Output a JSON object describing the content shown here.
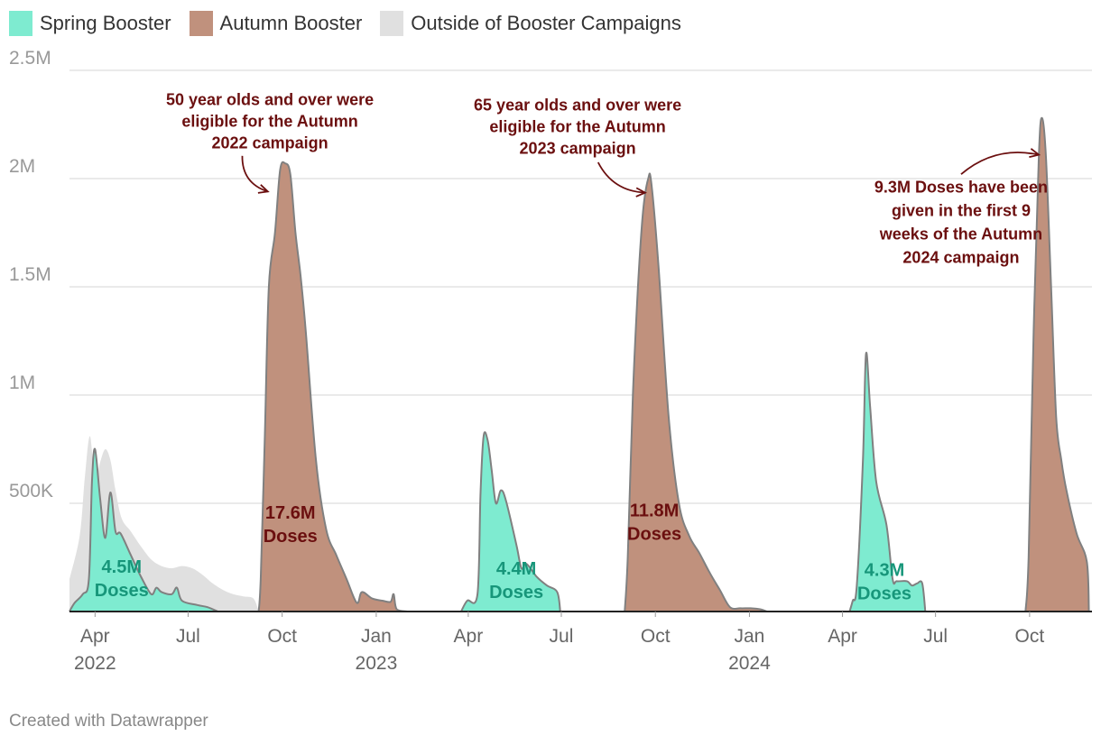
{
  "legend": [
    {
      "label": "Spring Booster",
      "color": "#7eebd0"
    },
    {
      "label": "Autumn Booster",
      "color": "#c0917d"
    },
    {
      "label": "Outside of Booster Campaigns",
      "color": "#e0e0e0"
    }
  ],
  "credit": "Created with Datawrapper",
  "chart_data": {
    "type": "area",
    "title": "",
    "xlabel": "",
    "ylabel": "",
    "ylim": [
      0,
      2500000
    ],
    "xlim": [
      "2022-03-07",
      "2024-12-01"
    ],
    "y_ticks": [
      {
        "value": 500000,
        "label": "500K"
      },
      {
        "value": 1000000,
        "label": "1M"
      },
      {
        "value": 1500000,
        "label": "1.5M"
      },
      {
        "value": 2000000,
        "label": "2M"
      },
      {
        "value": 2500000,
        "label": "2.5M"
      }
    ],
    "x_ticks": [
      {
        "date": "2022-04-01",
        "label": "Apr",
        "sub": "2022"
      },
      {
        "date": "2022-07-01",
        "label": "Jul",
        "sub": ""
      },
      {
        "date": "2022-10-01",
        "label": "Oct",
        "sub": ""
      },
      {
        "date": "2023-01-01",
        "label": "Jan",
        "sub": "2023"
      },
      {
        "date": "2023-04-01",
        "label": "Apr",
        "sub": ""
      },
      {
        "date": "2023-07-01",
        "label": "Jul",
        "sub": ""
      },
      {
        "date": "2023-10-01",
        "label": "Oct",
        "sub": ""
      },
      {
        "date": "2024-01-01",
        "label": "Jan",
        "sub": "2024"
      },
      {
        "date": "2024-04-01",
        "label": "Apr",
        "sub": ""
      },
      {
        "date": "2024-07-01",
        "label": "Jul",
        "sub": ""
      },
      {
        "date": "2024-10-01",
        "label": "Oct",
        "sub": ""
      }
    ],
    "series": [
      {
        "name": "Outside of Booster Campaigns",
        "color": "#e0e0e0",
        "stroke": "none",
        "points": [
          [
            "2022-03-07",
            150000
          ],
          [
            "2022-03-17",
            350000
          ],
          [
            "2022-03-22",
            620000
          ],
          [
            "2022-03-27",
            810000
          ],
          [
            "2022-04-01",
            600000
          ],
          [
            "2022-04-06",
            690000
          ],
          [
            "2022-04-11",
            750000
          ],
          [
            "2022-04-16",
            700000
          ],
          [
            "2022-04-21",
            560000
          ],
          [
            "2022-04-27",
            430000
          ],
          [
            "2022-05-06",
            370000
          ],
          [
            "2022-05-16",
            300000
          ],
          [
            "2022-05-26",
            240000
          ],
          [
            "2022-06-05",
            210000
          ],
          [
            "2022-06-15",
            200000
          ],
          [
            "2022-06-25",
            210000
          ],
          [
            "2022-07-05",
            200000
          ],
          [
            "2022-07-15",
            170000
          ],
          [
            "2022-07-25",
            130000
          ],
          [
            "2022-08-04",
            100000
          ],
          [
            "2022-08-14",
            80000
          ],
          [
            "2022-08-24",
            70000
          ],
          [
            "2022-09-03",
            60000
          ],
          [
            "2022-09-08",
            0
          ]
        ]
      },
      {
        "name": "Spring Booster 2022",
        "color": "#7eebd0",
        "stroke": "#808080",
        "points": [
          [
            "2022-03-07",
            0
          ],
          [
            "2022-03-12",
            40000
          ],
          [
            "2022-03-20",
            80000
          ],
          [
            "2022-03-26",
            150000
          ],
          [
            "2022-03-29",
            600000
          ],
          [
            "2022-04-01",
            750000
          ],
          [
            "2022-04-06",
            520000
          ],
          [
            "2022-04-11",
            340000
          ],
          [
            "2022-04-16",
            550000
          ],
          [
            "2022-04-21",
            370000
          ],
          [
            "2022-04-26",
            360000
          ],
          [
            "2022-05-06",
            260000
          ],
          [
            "2022-05-16",
            160000
          ],
          [
            "2022-05-26",
            80000
          ],
          [
            "2022-05-31",
            110000
          ],
          [
            "2022-06-05",
            90000
          ],
          [
            "2022-06-15",
            80000
          ],
          [
            "2022-06-20",
            110000
          ],
          [
            "2022-06-25",
            50000
          ],
          [
            "2022-07-10",
            30000
          ],
          [
            "2022-07-20",
            20000
          ],
          [
            "2022-07-30",
            0
          ]
        ]
      },
      {
        "name": "Autumn Booster 2022",
        "color": "#c0917d",
        "stroke": "#808080",
        "points": [
          [
            "2022-09-08",
            0
          ],
          [
            "2022-09-10",
            150000
          ],
          [
            "2022-09-14",
            800000
          ],
          [
            "2022-09-18",
            1500000
          ],
          [
            "2022-09-24",
            1750000
          ],
          [
            "2022-09-29",
            2040000
          ],
          [
            "2022-10-04",
            2070000
          ],
          [
            "2022-10-09",
            2020000
          ],
          [
            "2022-10-14",
            1750000
          ],
          [
            "2022-10-19",
            1550000
          ],
          [
            "2022-10-24",
            1300000
          ],
          [
            "2022-11-03",
            700000
          ],
          [
            "2022-11-13",
            380000
          ],
          [
            "2022-11-23",
            260000
          ],
          [
            "2022-12-03",
            150000
          ],
          [
            "2022-12-13",
            40000
          ],
          [
            "2022-12-18",
            90000
          ],
          [
            "2022-12-28",
            60000
          ],
          [
            "2023-01-07",
            50000
          ],
          [
            "2023-01-15",
            45000
          ],
          [
            "2023-01-18",
            80000
          ],
          [
            "2023-01-21",
            10000
          ],
          [
            "2023-01-31",
            0
          ]
        ]
      },
      {
        "name": "Spring Booster 2023",
        "color": "#7eebd0",
        "stroke": "#808080",
        "points": [
          [
            "2023-03-25",
            0
          ],
          [
            "2023-03-31",
            50000
          ],
          [
            "2023-04-10",
            80000
          ],
          [
            "2023-04-13",
            550000
          ],
          [
            "2023-04-16",
            810000
          ],
          [
            "2023-04-20",
            790000
          ],
          [
            "2023-04-24",
            650000
          ],
          [
            "2023-04-28",
            500000
          ],
          [
            "2023-05-03",
            560000
          ],
          [
            "2023-05-08",
            510000
          ],
          [
            "2023-05-18",
            310000
          ],
          [
            "2023-05-23",
            200000
          ],
          [
            "2023-05-28",
            220000
          ],
          [
            "2023-06-07",
            160000
          ],
          [
            "2023-06-17",
            120000
          ],
          [
            "2023-06-27",
            90000
          ],
          [
            "2023-06-30",
            0
          ]
        ]
      },
      {
        "name": "Autumn Booster 2023",
        "color": "#c0917d",
        "stroke": "#808080",
        "points": [
          [
            "2023-09-01",
            0
          ],
          [
            "2023-09-04",
            250000
          ],
          [
            "2023-09-09",
            1000000
          ],
          [
            "2023-09-14",
            1500000
          ],
          [
            "2023-09-19",
            1850000
          ],
          [
            "2023-09-24",
            2000000
          ],
          [
            "2023-09-27",
            1980000
          ],
          [
            "2023-10-04",
            1600000
          ],
          [
            "2023-10-14",
            900000
          ],
          [
            "2023-10-24",
            500000
          ],
          [
            "2023-11-03",
            350000
          ],
          [
            "2023-11-13",
            270000
          ],
          [
            "2023-11-23",
            180000
          ],
          [
            "2023-12-03",
            100000
          ],
          [
            "2023-12-13",
            20000
          ],
          [
            "2023-12-23",
            15000
          ],
          [
            "2024-01-02",
            15000
          ],
          [
            "2024-01-12",
            10000
          ],
          [
            "2024-01-18",
            0
          ]
        ]
      },
      {
        "name": "Spring Booster 2024",
        "color": "#7eebd0",
        "stroke": "#808080",
        "points": [
          [
            "2024-04-08",
            0
          ],
          [
            "2024-04-11",
            50000
          ],
          [
            "2024-04-15",
            120000
          ],
          [
            "2024-04-21",
            700000
          ],
          [
            "2024-04-24",
            1190000
          ],
          [
            "2024-04-28",
            950000
          ],
          [
            "2024-05-04",
            600000
          ],
          [
            "2024-05-14",
            400000
          ],
          [
            "2024-05-20",
            150000
          ],
          [
            "2024-05-24",
            140000
          ],
          [
            "2024-06-03",
            140000
          ],
          [
            "2024-06-08",
            120000
          ],
          [
            "2024-06-13",
            130000
          ],
          [
            "2024-06-18",
            130000
          ],
          [
            "2024-06-21",
            0
          ]
        ]
      },
      {
        "name": "Autumn Booster 2024",
        "color": "#c0917d",
        "stroke": "#808080",
        "points": [
          [
            "2024-09-27",
            0
          ],
          [
            "2024-09-30",
            250000
          ],
          [
            "2024-10-05",
            1300000
          ],
          [
            "2024-10-10",
            2100000
          ],
          [
            "2024-10-13",
            2280000
          ],
          [
            "2024-10-17",
            2100000
          ],
          [
            "2024-10-22",
            1500000
          ],
          [
            "2024-10-27",
            900000
          ],
          [
            "2024-11-01",
            700000
          ],
          [
            "2024-11-06",
            560000
          ],
          [
            "2024-11-16",
            360000
          ],
          [
            "2024-11-26",
            230000
          ],
          [
            "2024-11-28",
            0
          ]
        ]
      }
    ],
    "labels": [
      {
        "lines": [
          "4.5M",
          "Doses"
        ],
        "date": "2022-04-27",
        "value": 180000,
        "color": "#17967a"
      },
      {
        "lines": [
          "17.6M",
          "Doses"
        ],
        "date": "2022-10-09",
        "value": 430000,
        "color": "#6b0f0f"
      },
      {
        "lines": [
          "4.4M",
          "Doses"
        ],
        "date": "2023-05-18",
        "value": 170000,
        "color": "#17967a"
      },
      {
        "lines": [
          "11.8M",
          "Doses"
        ],
        "date": "2023-09-30",
        "value": 440000,
        "color": "#6b0f0f"
      },
      {
        "lines": [
          "4.3M",
          "Doses"
        ],
        "date": "2024-05-12",
        "value": 165000,
        "color": "#17967a"
      }
    ],
    "annotations": [
      {
        "lines": [
          "50 year olds and over were",
          "eligible for the Autumn",
          "2022 campaign"
        ],
        "date": "2022-09-19",
        "value": 2340000
      },
      {
        "lines": [
          "65 year olds and over were",
          "eligible for the Autumn",
          "2023 campaign"
        ],
        "date": "2023-07-17",
        "value": 2315000
      },
      {
        "lines": [
          "9.3M Doses have been",
          "given in the first 9",
          "weeks of the Autumn",
          "2024 campaign"
        ],
        "date": "2024-07-26",
        "value": 1935000
      }
    ],
    "arrows": [
      {
        "from": [
          "2022-08-23",
          2105000
        ],
        "to": [
          "2022-09-17",
          1940000
        ]
      },
      {
        "from": [
          "2023-08-06",
          2075000
        ],
        "to": [
          "2023-09-21",
          1935000
        ]
      },
      {
        "from": [
          "2024-07-26",
          2020000
        ],
        "to": [
          "2024-10-10",
          2110000
        ]
      }
    ]
  }
}
